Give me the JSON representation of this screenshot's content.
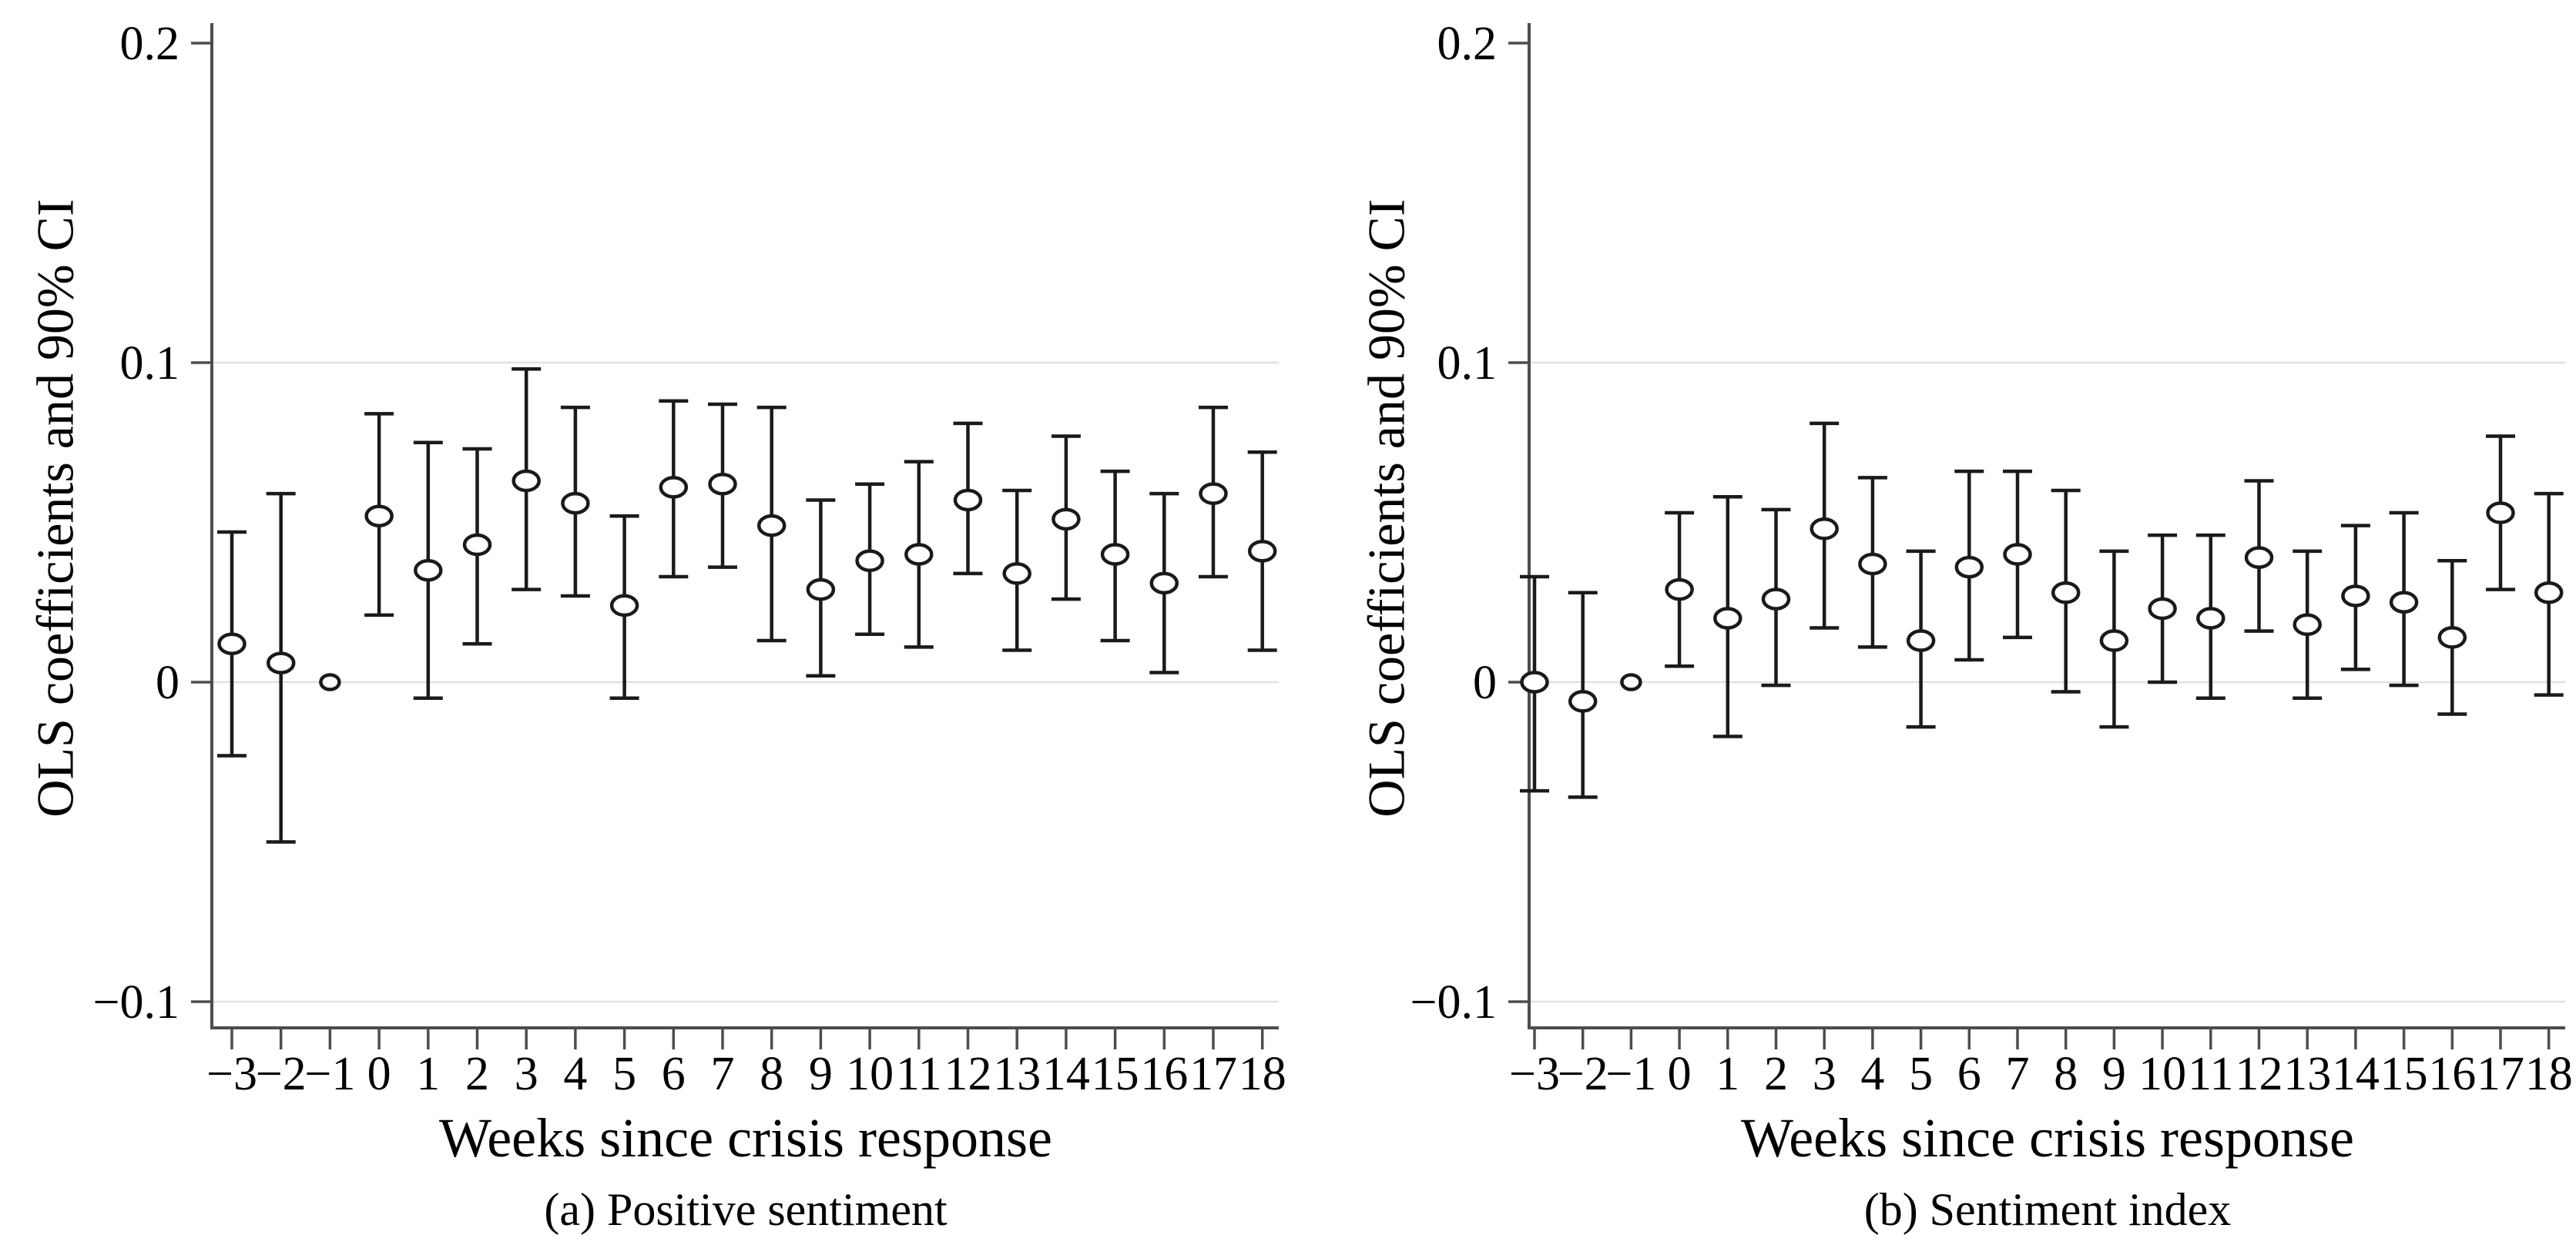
{
  "figure": {
    "background": "#ffffff",
    "text_color": "#000000",
    "axis_color": "#4d4d4d",
    "grid_color": "#e1e1e1",
    "marker_color": "#1a1a1a",
    "ci_level": "90%"
  },
  "y_axis": {
    "title": "OLS coefficients and 90% CI",
    "tick_labels": [
      "0.2",
      "0.1",
      "0",
      "−0.1"
    ],
    "tick_values": [
      0.2,
      0.1,
      0,
      -0.1
    ],
    "gridline_values": [
      0.1,
      0,
      -0.1
    ],
    "range": [
      -0.108,
      0.206
    ]
  },
  "x_axis": {
    "title": "Weeks since crisis response",
    "tick_labels": [
      "−3",
      "−2",
      "−1",
      "0",
      "1",
      "2",
      "3",
      "4",
      "5",
      "6",
      "7",
      "8",
      "9",
      "10",
      "11",
      "12",
      "13",
      "14",
      "15",
      "16",
      "17",
      "18"
    ]
  },
  "chart_data": [
    {
      "type": "scatter",
      "title": "(a) Positive sentiment",
      "xlabel": "Weeks since crisis response",
      "ylabel": "OLS coefficients and 90% CI",
      "legend": "none",
      "grid": "horizontal-only",
      "reference_week": -1,
      "ylim": [
        -0.108,
        0.206
      ],
      "x": [
        -3,
        -2,
        -1,
        0,
        1,
        2,
        3,
        4,
        5,
        6,
        7,
        8,
        9,
        10,
        11,
        12,
        13,
        14,
        15,
        16,
        17,
        18
      ],
      "estimates": [
        0.012,
        0.006,
        0.0,
        0.052,
        0.035,
        0.043,
        0.063,
        0.056,
        0.024,
        0.061,
        0.062,
        0.049,
        0.029,
        0.038,
        0.04,
        0.057,
        0.034,
        0.051,
        0.04,
        0.031,
        0.059,
        0.041
      ],
      "ci_low": [
        -0.023,
        -0.05,
        null,
        0.021,
        -0.005,
        0.012,
        0.029,
        0.027,
        -0.005,
        0.033,
        0.036,
        0.013,
        0.002,
        0.015,
        0.011,
        0.034,
        0.01,
        0.026,
        0.013,
        0.003,
        0.033,
        0.01
      ],
      "ci_high": [
        0.047,
        0.059,
        null,
        0.084,
        0.075,
        0.073,
        0.098,
        0.086,
        0.052,
        0.088,
        0.087,
        0.086,
        0.057,
        0.062,
        0.069,
        0.081,
        0.06,
        0.077,
        0.066,
        0.059,
        0.086,
        0.072
      ]
    },
    {
      "type": "scatter",
      "title": "(b) Sentiment index",
      "xlabel": "Weeks since crisis response",
      "ylabel": "OLS coefficients and 90% CI",
      "legend": "none",
      "grid": "horizontal-only",
      "reference_week": -1,
      "ylim": [
        -0.108,
        0.206
      ],
      "x": [
        -3,
        -2,
        -1,
        0,
        1,
        2,
        3,
        4,
        5,
        6,
        7,
        8,
        9,
        10,
        11,
        12,
        13,
        14,
        15,
        16,
        17,
        18
      ],
      "estimates": [
        0.0,
        -0.006,
        0.0,
        0.029,
        0.02,
        0.026,
        0.048,
        0.037,
        0.013,
        0.036,
        0.04,
        0.028,
        0.013,
        0.023,
        0.02,
        0.039,
        0.018,
        0.027,
        0.025,
        0.014,
        0.053,
        0.028
      ],
      "ci_low": [
        -0.034,
        -0.036,
        null,
        0.005,
        -0.017,
        -0.001,
        0.017,
        0.011,
        -0.014,
        0.007,
        0.014,
        -0.003,
        -0.014,
        0.0,
        -0.005,
        0.016,
        -0.005,
        0.004,
        -0.001,
        -0.01,
        0.029,
        -0.004
      ],
      "ci_high": [
        0.033,
        0.028,
        null,
        0.053,
        0.058,
        0.054,
        0.081,
        0.064,
        0.041,
        0.066,
        0.066,
        0.06,
        0.041,
        0.046,
        0.046,
        0.063,
        0.041,
        0.049,
        0.053,
        0.038,
        0.077,
        0.059
      ]
    }
  ]
}
